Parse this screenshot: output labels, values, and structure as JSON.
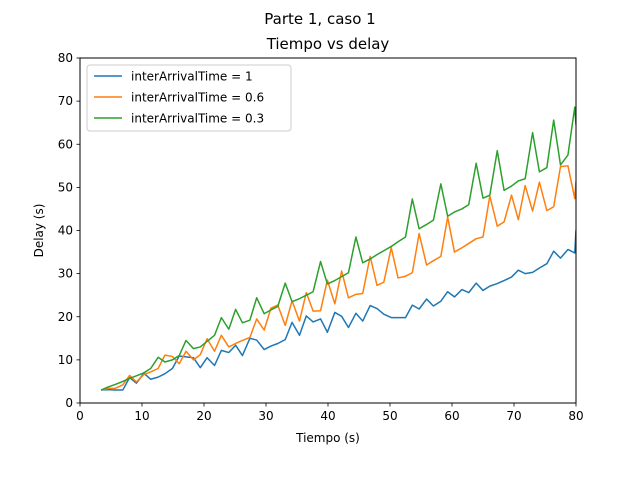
{
  "chart_data": {
    "type": "line",
    "suptitle": "Parte 1, caso 1",
    "title": "Tiempo vs delay",
    "xlabel": "Tiempo (s)",
    "ylabel": "Delay (s)",
    "xlim": [
      0,
      80
    ],
    "ylim": [
      0,
      80
    ],
    "xticks": [
      0,
      10,
      20,
      30,
      40,
      50,
      60,
      70,
      80
    ],
    "yticks": [
      0,
      10,
      20,
      30,
      40,
      50,
      60,
      70,
      80
    ],
    "grid": false,
    "legend_position": "top-left",
    "series": [
      {
        "name": "interArrivalTime = 1",
        "color": "#1f77b4",
        "points": [
          [
            3.4,
            3.0
          ],
          [
            4.5,
            3.1
          ],
          [
            5.7,
            3.0
          ],
          [
            6.9,
            3.0
          ],
          [
            8.0,
            5.9
          ],
          [
            9.1,
            4.6
          ],
          [
            10.3,
            6.9
          ],
          [
            11.4,
            5.5
          ],
          [
            12.6,
            6.0
          ],
          [
            13.7,
            6.8
          ],
          [
            14.9,
            8.0
          ],
          [
            16.0,
            10.9
          ],
          [
            17.1,
            10.7
          ],
          [
            18.3,
            10.5
          ],
          [
            19.4,
            8.2
          ],
          [
            20.5,
            10.5
          ],
          [
            21.7,
            8.7
          ],
          [
            22.8,
            12.2
          ],
          [
            24.0,
            11.7
          ],
          [
            25.1,
            13.4
          ],
          [
            26.2,
            11.0
          ],
          [
            27.4,
            15.0
          ],
          [
            28.5,
            14.6
          ],
          [
            29.7,
            12.4
          ],
          [
            30.8,
            13.2
          ],
          [
            31.9,
            13.8
          ],
          [
            33.1,
            14.7
          ],
          [
            34.2,
            18.7
          ],
          [
            35.4,
            15.7
          ],
          [
            36.5,
            20.2
          ],
          [
            37.6,
            18.8
          ],
          [
            38.8,
            19.5
          ],
          [
            39.9,
            16.4
          ],
          [
            41.1,
            21.0
          ],
          [
            42.2,
            20.1
          ],
          [
            43.3,
            17.5
          ],
          [
            44.5,
            20.8
          ],
          [
            45.6,
            19.0
          ],
          [
            46.8,
            22.6
          ],
          [
            47.9,
            21.9
          ],
          [
            49.0,
            20.6
          ],
          [
            50.2,
            19.8
          ],
          [
            51.3,
            19.8
          ],
          [
            52.5,
            19.8
          ],
          [
            53.6,
            22.7
          ],
          [
            54.7,
            21.8
          ],
          [
            55.9,
            24.1
          ],
          [
            57.0,
            22.5
          ],
          [
            58.2,
            23.6
          ],
          [
            59.3,
            25.8
          ],
          [
            60.4,
            24.6
          ],
          [
            61.6,
            26.3
          ],
          [
            62.7,
            25.6
          ],
          [
            63.9,
            27.8
          ],
          [
            65.0,
            26.1
          ],
          [
            66.1,
            27.1
          ],
          [
            67.3,
            27.7
          ],
          [
            68.4,
            28.4
          ],
          [
            69.6,
            29.2
          ],
          [
            70.7,
            30.8
          ],
          [
            71.8,
            30.0
          ],
          [
            73.0,
            30.3
          ],
          [
            74.1,
            31.3
          ],
          [
            75.3,
            32.3
          ],
          [
            76.4,
            35.2
          ],
          [
            77.5,
            33.6
          ],
          [
            78.7,
            35.6
          ],
          [
            79.8,
            34.8
          ],
          [
            80.0,
            40.1
          ]
        ]
      },
      {
        "name": "interArrivalTime = 0.6",
        "color": "#ff7f0e",
        "points": [
          [
            3.4,
            3.0
          ],
          [
            4.5,
            3.4
          ],
          [
            5.7,
            3.4
          ],
          [
            6.9,
            4.2
          ],
          [
            8.0,
            6.4
          ],
          [
            9.1,
            4.9
          ],
          [
            10.3,
            6.6
          ],
          [
            11.4,
            7.2
          ],
          [
            12.6,
            8.0
          ],
          [
            13.7,
            11.1
          ],
          [
            14.9,
            10.8
          ],
          [
            16.0,
            9.1
          ],
          [
            17.1,
            12.0
          ],
          [
            18.3,
            10.0
          ],
          [
            19.4,
            11.2
          ],
          [
            20.5,
            14.9
          ],
          [
            21.7,
            12.0
          ],
          [
            22.8,
            15.7
          ],
          [
            24.0,
            13.0
          ],
          [
            25.1,
            13.8
          ],
          [
            26.2,
            14.5
          ],
          [
            27.4,
            15.2
          ],
          [
            28.5,
            19.5
          ],
          [
            29.7,
            16.9
          ],
          [
            30.8,
            22.0
          ],
          [
            31.9,
            22.7
          ],
          [
            33.1,
            18.0
          ],
          [
            34.2,
            23.7
          ],
          [
            35.4,
            19.0
          ],
          [
            36.5,
            25.6
          ],
          [
            37.6,
            21.3
          ],
          [
            38.8,
            21.4
          ],
          [
            39.9,
            28.5
          ],
          [
            41.1,
            23.0
          ],
          [
            42.2,
            30.6
          ],
          [
            43.3,
            24.4
          ],
          [
            44.5,
            25.2
          ],
          [
            45.6,
            25.4
          ],
          [
            46.8,
            34.0
          ],
          [
            47.9,
            27.3
          ],
          [
            49.0,
            28.0
          ],
          [
            50.2,
            36.0
          ],
          [
            51.3,
            29.0
          ],
          [
            52.5,
            29.4
          ],
          [
            53.6,
            30.2
          ],
          [
            54.7,
            39.3
          ],
          [
            55.9,
            32.0
          ],
          [
            57.0,
            33.0
          ],
          [
            58.2,
            34.0
          ],
          [
            59.3,
            43.1
          ],
          [
            60.4,
            35.0
          ],
          [
            61.6,
            36.0
          ],
          [
            62.7,
            37.0
          ],
          [
            63.9,
            38.1
          ],
          [
            65.0,
            38.5
          ],
          [
            66.1,
            48.0
          ],
          [
            67.3,
            41.0
          ],
          [
            68.4,
            42.0
          ],
          [
            69.6,
            48.2
          ],
          [
            70.7,
            42.5
          ],
          [
            71.8,
            50.4
          ],
          [
            73.0,
            44.5
          ],
          [
            74.1,
            51.2
          ],
          [
            75.3,
            44.6
          ],
          [
            76.4,
            45.5
          ],
          [
            77.5,
            54.8
          ],
          [
            78.7,
            55.0
          ],
          [
            79.8,
            47.4
          ],
          [
            80.0,
            51.4
          ]
        ]
      },
      {
        "name": "interArrivalTime = 0.3",
        "color": "#2ca02c",
        "points": [
          [
            3.4,
            3.0
          ],
          [
            4.5,
            3.7
          ],
          [
            5.7,
            4.3
          ],
          [
            6.9,
            5.0
          ],
          [
            8.0,
            5.7
          ],
          [
            9.1,
            6.3
          ],
          [
            10.3,
            7.0
          ],
          [
            11.4,
            8.0
          ],
          [
            12.6,
            10.6
          ],
          [
            13.7,
            9.5
          ],
          [
            14.9,
            10.0
          ],
          [
            16.0,
            11.0
          ],
          [
            17.1,
            14.5
          ],
          [
            18.3,
            12.6
          ],
          [
            19.4,
            13.0
          ],
          [
            20.5,
            14.3
          ],
          [
            21.7,
            15.7
          ],
          [
            22.8,
            19.8
          ],
          [
            24.0,
            17.1
          ],
          [
            25.1,
            21.7
          ],
          [
            26.2,
            18.6
          ],
          [
            27.4,
            19.2
          ],
          [
            28.5,
            24.4
          ],
          [
            29.7,
            20.7
          ],
          [
            30.8,
            21.6
          ],
          [
            31.9,
            22.4
          ],
          [
            33.1,
            27.8
          ],
          [
            34.2,
            23.5
          ],
          [
            35.4,
            24.2
          ],
          [
            36.5,
            25.0
          ],
          [
            37.6,
            25.8
          ],
          [
            38.8,
            32.8
          ],
          [
            39.9,
            27.6
          ],
          [
            41.1,
            28.4
          ],
          [
            42.2,
            29.3
          ],
          [
            43.3,
            30.2
          ],
          [
            44.5,
            38.5
          ],
          [
            45.6,
            32.5
          ],
          [
            46.8,
            33.4
          ],
          [
            47.9,
            34.4
          ],
          [
            49.0,
            35.3
          ],
          [
            50.2,
            36.3
          ],
          [
            51.3,
            37.4
          ],
          [
            52.5,
            38.5
          ],
          [
            53.6,
            47.3
          ],
          [
            54.7,
            40.4
          ],
          [
            55.9,
            41.4
          ],
          [
            57.0,
            42.4
          ],
          [
            58.2,
            50.8
          ],
          [
            59.3,
            43.3
          ],
          [
            60.4,
            44.3
          ],
          [
            61.6,
            45.0
          ],
          [
            62.7,
            46.0
          ],
          [
            63.9,
            55.6
          ],
          [
            65.0,
            47.5
          ],
          [
            66.1,
            48.2
          ],
          [
            67.3,
            58.5
          ],
          [
            68.4,
            49.3
          ],
          [
            69.6,
            50.3
          ],
          [
            70.7,
            51.5
          ],
          [
            71.8,
            52.0
          ],
          [
            73.0,
            62.7
          ],
          [
            74.1,
            53.6
          ],
          [
            75.3,
            54.6
          ],
          [
            76.4,
            65.6
          ],
          [
            77.5,
            55.2
          ],
          [
            78.7,
            57.5
          ],
          [
            79.8,
            68.6
          ],
          [
            80.0,
            64.5
          ]
        ]
      }
    ]
  }
}
